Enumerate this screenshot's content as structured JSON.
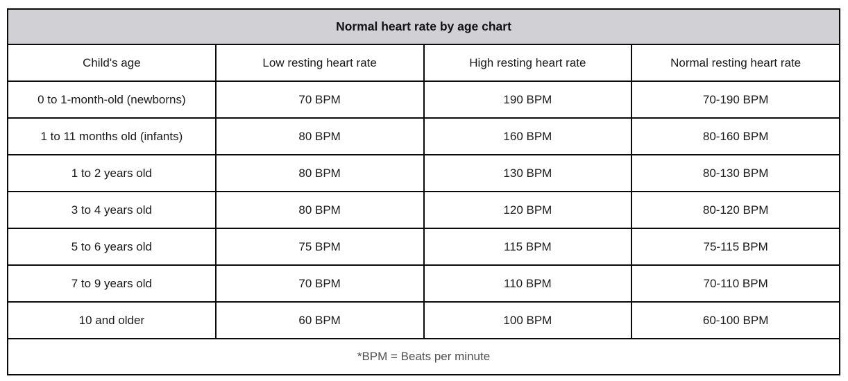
{
  "chart_data": {
    "type": "table",
    "title": "Normal heart rate by age chart",
    "columns": [
      "Child's age",
      "Low resting heart rate",
      "High resting heart rate",
      "Normal resting heart rate"
    ],
    "rows": [
      [
        "0 to 1-month-old (newborns)",
        "70 BPM",
        "190 BPM",
        "70-190 BPM"
      ],
      [
        "1 to 11 months old (infants)",
        "80 BPM",
        "160 BPM",
        "80-160 BPM"
      ],
      [
        "1 to 2 years old",
        "80 BPM",
        "130 BPM",
        "80-130 BPM"
      ],
      [
        "3 to 4 years old",
        "80 BPM",
        "120 BPM",
        "80-120 BPM"
      ],
      [
        "5 to 6 years old",
        "75 BPM",
        "115 BPM",
        "75-115 BPM"
      ],
      [
        "7 to 9 years old",
        "70 BPM",
        "110 BPM",
        "70-110 BPM"
      ],
      [
        "10 and older",
        "60 BPM",
        "100 BPM",
        "60-100 BPM"
      ]
    ],
    "footnote": "*BPM = Beats per minute",
    "layout": {
      "grid": "on",
      "columns_count": 4,
      "title_position": "top-center",
      "footnote_position": "bottom-center"
    },
    "colors": {
      "title_background": "#d1d1d5",
      "border": "#0a0a0a",
      "body_text": "#1a1a1a",
      "footnote_text": "#4f4f53",
      "cell_background": "#ffffff"
    }
  }
}
